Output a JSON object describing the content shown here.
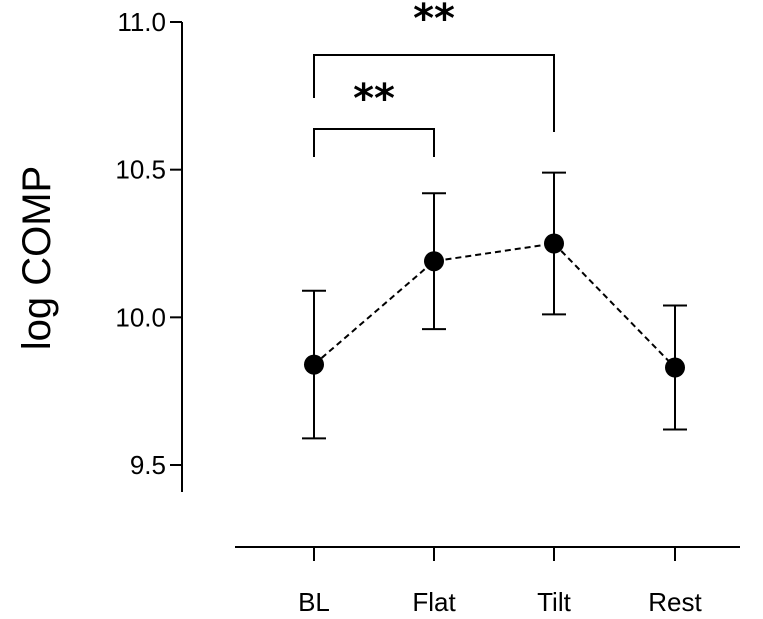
{
  "chart_data": {
    "type": "scatter",
    "categories": [
      "BL",
      "Flat",
      "Tilt",
      "Rest"
    ],
    "series": [
      {
        "values": [
          9.84,
          10.19,
          10.25,
          9.83
        ],
        "error_low": [
          9.59,
          9.96,
          10.01,
          9.62
        ],
        "error_high": [
          10.09,
          10.42,
          10.49,
          10.04
        ]
      }
    ],
    "connector": "dashed",
    "marker": "filled-circle",
    "ylabel": "log COMP",
    "xlabel": "",
    "ylim": [
      9.4,
      11.0
    ],
    "yticks": [
      9.5,
      10.0,
      10.5,
      11.0
    ],
    "ytick_labels": [
      "9.5",
      "10.0",
      "10.5",
      "11.0"
    ],
    "grid": false,
    "legend": "none",
    "significance": [
      {
        "from": "BL",
        "to": "Flat",
        "label": "**"
      },
      {
        "from": "BL",
        "to": "Tilt",
        "label": "**"
      }
    ],
    "colors": {
      "marker": "#000000",
      "line": "#000000"
    }
  }
}
